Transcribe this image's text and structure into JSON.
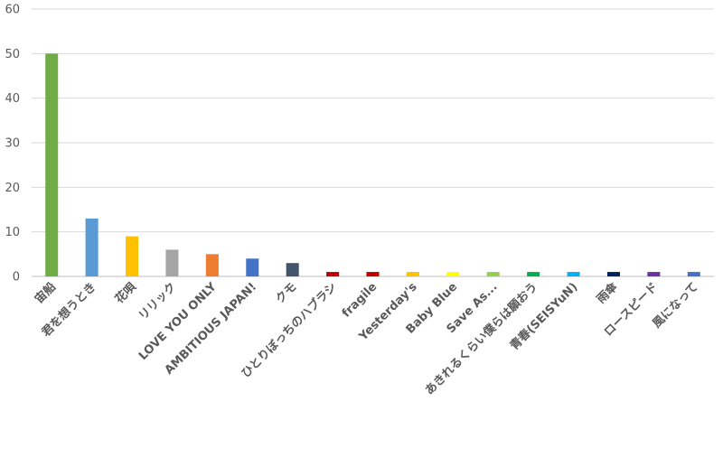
{
  "chart_data": {
    "type": "bar",
    "categories": [
      "宙船",
      "君を想うとき",
      "花唄",
      "リリック",
      "LOVE YOU ONLY",
      "AMBITIOUS JAPAN!",
      "クモ",
      "ひとりぼっちのハブラシ",
      "fragile",
      "Yesterday's",
      "Baby Blue",
      "Save As...",
      "あきれるくらい僕らは願おう",
      "青春(SEISYuN)",
      "雨傘",
      "ロースピード",
      "風になって"
    ],
    "values": [
      50,
      13,
      9,
      6,
      5,
      4,
      3,
      1,
      1,
      1,
      1,
      1,
      1,
      1,
      1,
      1,
      1
    ],
    "colors": [
      "#70ad47",
      "#5b9bd5",
      "#ffc000",
      "#a5a5a5",
      "#ed7d31",
      "#4472c4",
      "#44546a",
      "#c00000",
      "#c00000",
      "#ffc000",
      "#ffff00",
      "#92d050",
      "#00b050",
      "#00b0f0",
      "#002060",
      "#7030a0",
      "#4472c4"
    ],
    "yticks": [
      0,
      10,
      20,
      30,
      40,
      50,
      60
    ],
    "ylim": [
      0,
      60
    ],
    "grid": true,
    "legend": "none"
  }
}
